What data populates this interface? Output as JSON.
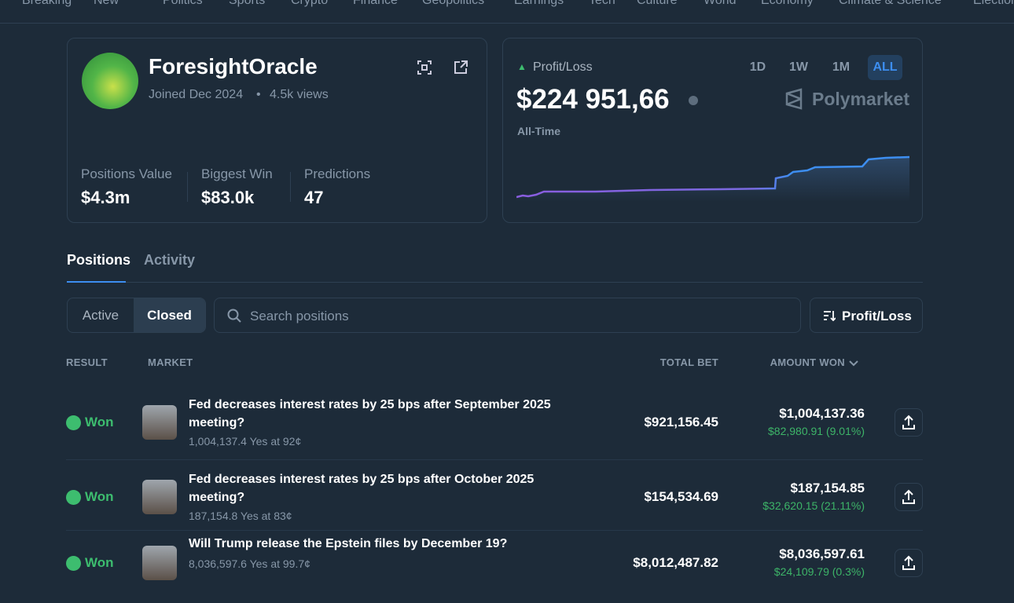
{
  "nav": [
    "Breaking",
    "New",
    "Politics",
    "Sports",
    "Crypto",
    "Finance",
    "Geopolitics",
    "Earnings",
    "Tech",
    "Culture",
    "World",
    "Economy",
    "Climate & Science",
    "Elections"
  ],
  "profile": {
    "name": "ForesightOracle",
    "joined": "Joined Dec 2024",
    "views": "4.5k views",
    "stats": [
      {
        "label": "Positions Value",
        "value": "$4.3m"
      },
      {
        "label": "Biggest Win",
        "value": "$83.0k"
      },
      {
        "label": "Predictions",
        "value": "47"
      }
    ]
  },
  "pnl": {
    "label": "Profit/Loss",
    "ranges": [
      "1D",
      "1W",
      "1M",
      "ALL"
    ],
    "amount": "$224 951,66",
    "period": "All-Time",
    "brand": "Polymarket"
  },
  "tabs": [
    "Positions",
    "Activity"
  ],
  "filters": [
    "Active",
    "Closed"
  ],
  "search_placeholder": "Search positions",
  "sort": "Profit/Loss",
  "table": {
    "headers": [
      "RESULT",
      "MARKET",
      "TOTAL BET",
      "AMOUNT WON"
    ],
    "rows": [
      {
        "result": "Won",
        "market": "Fed decreases interest rates by 25 bps after September 2025 meeting?",
        "detail": "1,004,137.4 Yes at 92¢",
        "total_bet": "$921,156.45",
        "amount_won": "$1,004,137.36",
        "profit": "$82,980.91 (9.01%)"
      },
      {
        "result": "Won",
        "market": "Fed decreases interest rates by 25 bps after October 2025 meeting?",
        "detail": "187,154.8 Yes at 83¢",
        "total_bet": "$154,534.69",
        "amount_won": "$187,154.85",
        "profit": "$32,620.15 (21.11%)"
      },
      {
        "result": "Won",
        "market": "Will Trump release the Epstein files by December 19?",
        "detail": "8,036,597.6 Yes at 99.7¢",
        "total_bet": "$8,012,487.82",
        "amount_won": "$8,036,597.61",
        "profit": "$24,109.79 (0.3%)"
      }
    ]
  }
}
